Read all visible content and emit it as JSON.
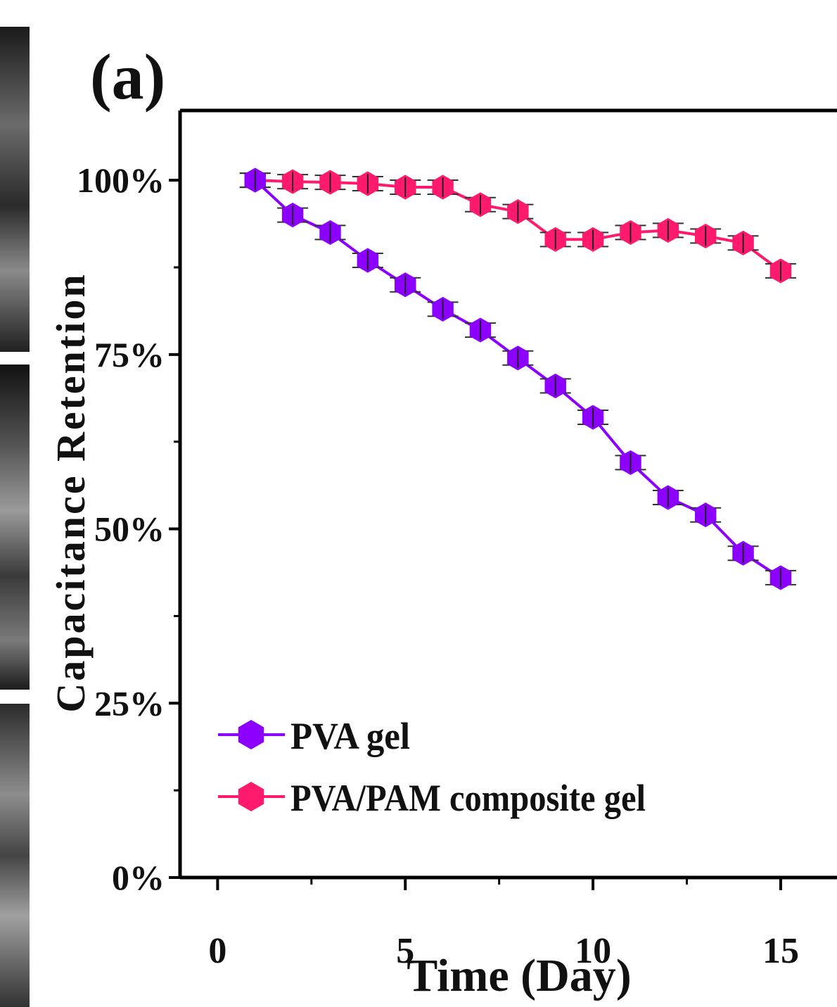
{
  "panel_label": "(a)",
  "colors": {
    "pva": "#8b00ff",
    "composite": "#ff1a6e",
    "axis": "#000000"
  },
  "chart_data": {
    "type": "line",
    "title": "",
    "xlabel": "Time (Day)",
    "ylabel": "Capacitance Retention",
    "xlim": [
      -1,
      16.5
    ],
    "ylim": [
      0,
      1.1
    ],
    "xticks": [
      0,
      5,
      10,
      15
    ],
    "yticks": [
      0,
      0.25,
      0.5,
      0.75,
      1.0
    ],
    "ytick_labels": [
      "0%",
      "25%",
      "50%",
      "75%",
      "100%"
    ],
    "grid": false,
    "legend_position": "bottom-left",
    "series": [
      {
        "name": "PVA gel",
        "color": "#8b00ff",
        "marker": "hexagon",
        "x": [
          1,
          2,
          3,
          4,
          5,
          6,
          7,
          8,
          9,
          10,
          11,
          12,
          13,
          14,
          15
        ],
        "y": [
          1.0,
          0.95,
          0.925,
          0.885,
          0.85,
          0.815,
          0.785,
          0.745,
          0.705,
          0.66,
          0.595,
          0.545,
          0.52,
          0.465,
          0.43
        ]
      },
      {
        "name": "PVA/PAM composite gel",
        "color": "#ff1a6e",
        "marker": "hexagon",
        "x": [
          1,
          2,
          3,
          4,
          5,
          6,
          7,
          8,
          9,
          10,
          11,
          12,
          13,
          14,
          15
        ],
        "y": [
          1.0,
          0.998,
          0.997,
          0.995,
          0.99,
          0.99,
          0.965,
          0.955,
          0.915,
          0.915,
          0.925,
          0.928,
          0.92,
          0.91,
          0.87
        ]
      }
    ]
  }
}
